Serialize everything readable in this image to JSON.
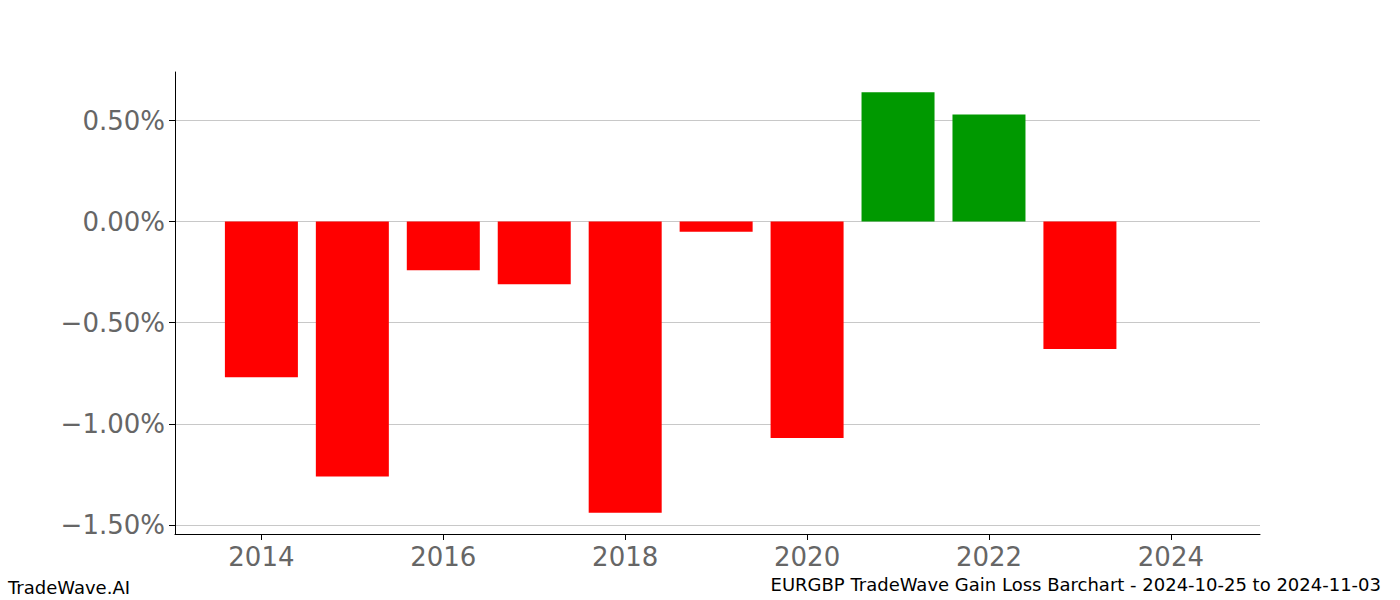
{
  "chart_data": {
    "type": "bar",
    "title": "EURGBP TradeWave Gain Loss Barchart - 2024-10-25 to 2024-11-03",
    "annotations": [
      "TradeWave.AI"
    ],
    "x": [
      2014,
      2015,
      2016,
      2017,
      2018,
      2019,
      2020,
      2021,
      2022,
      2023
    ],
    "values": [
      -0.77,
      -1.26,
      -0.24,
      -0.31,
      -1.44,
      -0.05,
      -1.07,
      0.64,
      0.53,
      -0.63
    ],
    "colors": [
      "#ff0000",
      "#ff0000",
      "#ff0000",
      "#ff0000",
      "#ff0000",
      "#ff0000",
      "#ff0000",
      "#009900",
      "#009900",
      "#ff0000"
    ],
    "xlim": [
      2013.05,
      2024.98
    ],
    "xticks": [
      2014,
      2016,
      2018,
      2020,
      2022,
      2024
    ],
    "ylim": [
      -1.545,
      0.74
    ],
    "yticks": [
      {
        "value": -1.5,
        "label": "−1.50%"
      },
      {
        "value": -1.0,
        "label": "−1.00%"
      },
      {
        "value": -0.5,
        "label": "−0.50%"
      },
      {
        "value": 0.0,
        "label": "0.00%"
      },
      {
        "value": 0.5,
        "label": "0.50%"
      }
    ],
    "grid": true
  }
}
